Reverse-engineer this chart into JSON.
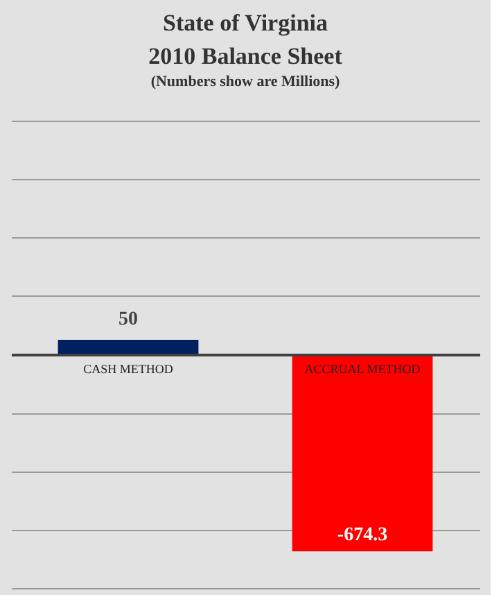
{
  "chart_data": {
    "type": "bar",
    "title": "State of Virginia\n2010 Balance Sheet",
    "subtitle": "(Numbers show are Millions)",
    "categories": [
      "CASH METHOD",
      "ACCRUAL METHOD"
    ],
    "values": [
      50,
      -674.3
    ],
    "colors": [
      "#002060",
      "#ff0000"
    ],
    "ylim": [
      -800,
      800
    ],
    "yticks": [
      {
        "value": -800,
        "label": null
      },
      {
        "value": -600,
        "label": null
      },
      {
        "value": -400,
        "label": null
      },
      {
        "value": -200,
        "label": null
      },
      {
        "value": 0,
        "label": null
      },
      {
        "value": 200,
        "label": null
      },
      {
        "value": 400,
        "label": null
      },
      {
        "value": 600,
        "label": null
      },
      {
        "value": 800,
        "label": null
      }
    ],
    "tick_labels": "x",
    "grid": "y",
    "data_labels": true
  }
}
